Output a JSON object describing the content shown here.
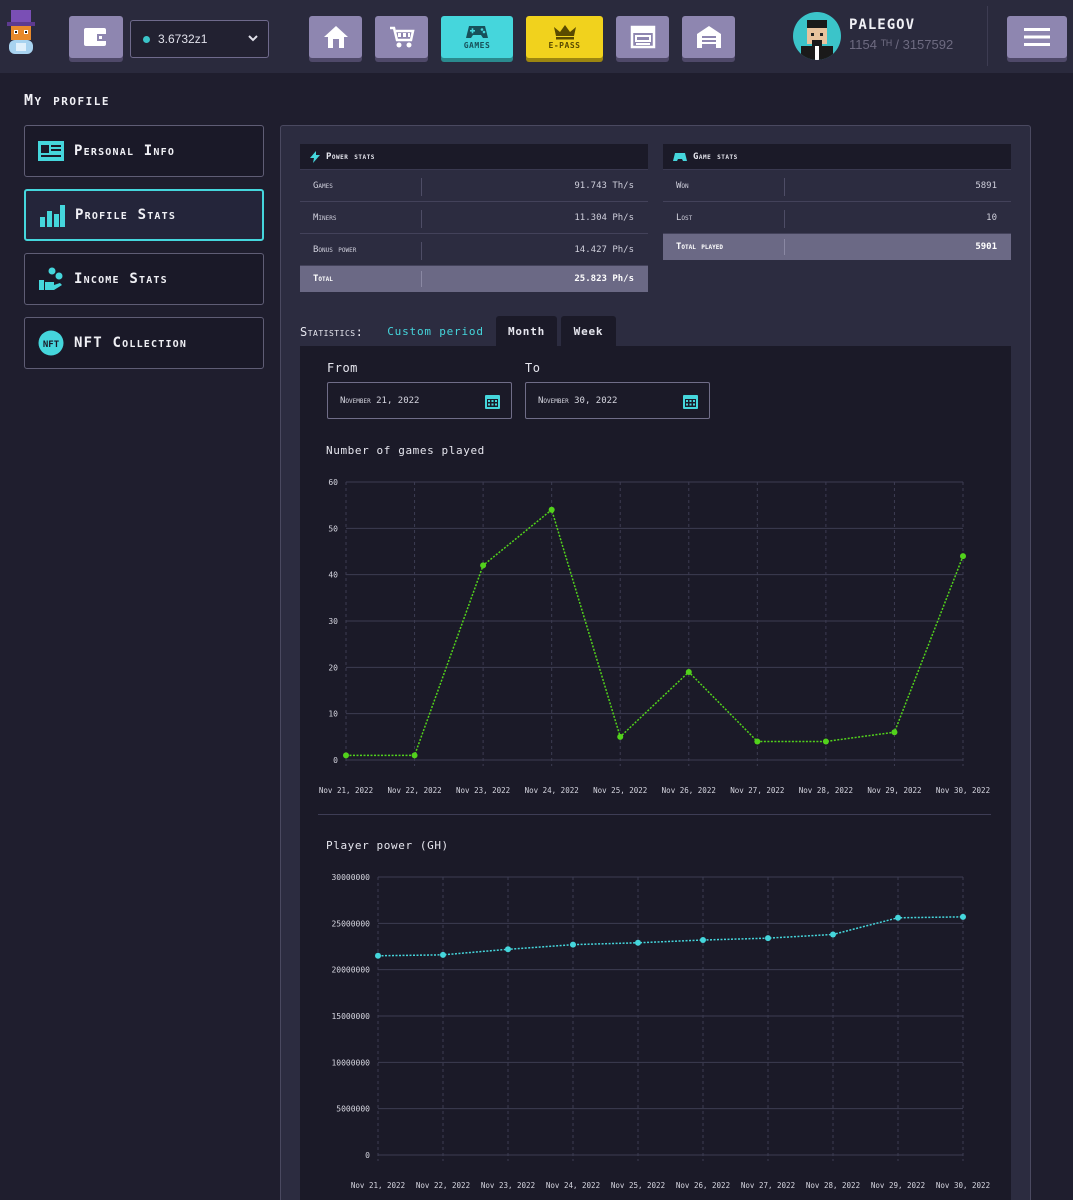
{
  "header": {
    "balance": "3.6732z1",
    "nav": [
      {
        "name": "wallet",
        "icon": "wallet-icon",
        "label": ""
      },
      {
        "name": "home",
        "icon": "home-icon",
        "label": ""
      },
      {
        "name": "market",
        "icon": "cart-icon",
        "label": ""
      },
      {
        "name": "games",
        "icon": "gamepad-icon",
        "label": "GAMES"
      },
      {
        "name": "epass",
        "icon": "crown-icon",
        "label": "E-PASS"
      },
      {
        "name": "store",
        "icon": "store-icon",
        "label": ""
      },
      {
        "name": "garage",
        "icon": "garage-icon",
        "label": ""
      }
    ],
    "user": {
      "name": "PALEGOV",
      "rank": "1154 ᵀᴴ / 3157592"
    },
    "menu_icon": "hamburger-icon"
  },
  "sidebar": {
    "title": "My profile",
    "items": [
      {
        "label": "Personal Info",
        "icon": "id-card-icon",
        "active": false
      },
      {
        "label": "Profile Stats",
        "icon": "bar-chart-icon",
        "active": true
      },
      {
        "label": "Income Stats",
        "icon": "coins-hand-icon",
        "active": false
      },
      {
        "label": "NFT Collection",
        "icon": "nft-badge-icon",
        "active": false
      }
    ]
  },
  "power_stats": {
    "title": "Power stats",
    "rows": [
      {
        "key": "Games",
        "value": "91.743 Th/s"
      },
      {
        "key": "Miners",
        "value": "11.304 Ph/s"
      },
      {
        "key": "Bonus power",
        "value": "14.427 Ph/s"
      }
    ],
    "total": {
      "key": "Total",
      "value": "25.823 Ph/s"
    }
  },
  "game_stats": {
    "title": "Game stats",
    "rows": [
      {
        "key": "Won",
        "value": "5891"
      },
      {
        "key": "Lost",
        "value": "10"
      }
    ],
    "total": {
      "key": "Total played",
      "value": "5901"
    }
  },
  "statistics": {
    "label": "Statistics:",
    "tabs": [
      {
        "label": "Custom period",
        "active": true
      },
      {
        "label": "Month",
        "active": false
      },
      {
        "label": "Week",
        "active": false
      }
    ],
    "from_label": "From",
    "to_label": "To",
    "from_value": "November 21, 2022",
    "to_value": "November 30, 2022"
  },
  "colors": {
    "accent": "#45d6dc",
    "epass": "#f1d21d",
    "line_games": "#52d21c",
    "line_power": "#45d6dc"
  },
  "chart_data": [
    {
      "type": "line",
      "title": "Number of games played",
      "x": [
        "Nov 21, 2022",
        "Nov 22, 2022",
        "Nov 23, 2022",
        "Nov 24, 2022",
        "Nov 25, 2022",
        "Nov 26, 2022",
        "Nov 27, 2022",
        "Nov 28, 2022",
        "Nov 29, 2022",
        "Nov 30, 2022"
      ],
      "series": [
        {
          "values": [
            1,
            1,
            42,
            54,
            5,
            19,
            4,
            4,
            6,
            44
          ]
        }
      ],
      "ylim": [
        0,
        60
      ],
      "yticks": [
        0,
        10,
        20,
        30,
        40,
        50,
        60
      ],
      "grid": true,
      "color": "#52d21c"
    },
    {
      "type": "line",
      "title": "Player power (GH)",
      "x": [
        "Nov 21, 2022",
        "Nov 22, 2022",
        "Nov 23, 2022",
        "Nov 24, 2022",
        "Nov 25, 2022",
        "Nov 26, 2022",
        "Nov 27, 2022",
        "Nov 28, 2022",
        "Nov 29, 2022",
        "Nov 30, 2022"
      ],
      "series": [
        {
          "values": [
            21500000,
            21600000,
            22200000,
            22700000,
            22900000,
            23200000,
            23400000,
            23800000,
            25600000,
            25700000
          ]
        }
      ],
      "ylim": [
        0,
        30000000
      ],
      "yticks": [
        0,
        5000000,
        10000000,
        15000000,
        20000000,
        25000000,
        30000000
      ],
      "grid": true,
      "color": "#45d6dc"
    }
  ]
}
